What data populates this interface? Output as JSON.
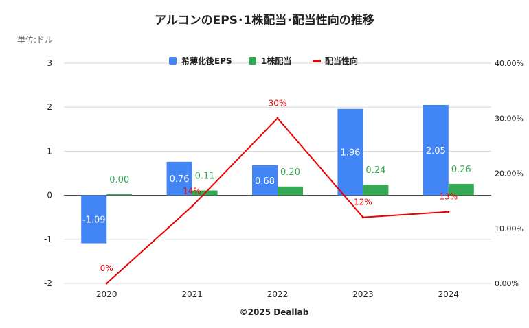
{
  "chart_data": {
    "type": "bar",
    "title": "アルコンのEPS･1株配当･配当性向の推移",
    "unit_label": "単位:ドル",
    "credit": "©2025 Deallab",
    "categories": [
      "2020",
      "2021",
      "2022",
      "2023",
      "2024"
    ],
    "ylim": [
      -2,
      3
    ],
    "y_ticks": [
      "-2",
      "-1",
      "0",
      "1",
      "2",
      "3"
    ],
    "y2lim": [
      0,
      40
    ],
    "y2_ticks": [
      "0.00%",
      "10.00%",
      "20.00%",
      "30.00%",
      "40.00%"
    ],
    "grid": true,
    "legend_position": "top",
    "series": [
      {
        "name": "希薄化後EPS",
        "kind": "bar",
        "color": "#4285f4",
        "values": [
          -1.09,
          0.76,
          0.68,
          1.96,
          2.05
        ],
        "labels": [
          "-1.09",
          "0.76",
          "0.68",
          "1.96",
          "2.05"
        ]
      },
      {
        "name": "1株配当",
        "kind": "bar",
        "color": "#34a853",
        "values": [
          0.0,
          0.11,
          0.2,
          0.24,
          0.26
        ],
        "labels": [
          "0.00",
          "0.11",
          "0.20",
          "0.24",
          "0.26"
        ]
      },
      {
        "name": "配当性向",
        "kind": "line",
        "axis": "right",
        "color": "#ea0000",
        "values": [
          0,
          14,
          30,
          12,
          13
        ],
        "labels": [
          "0%",
          "14%",
          "30%",
          "12%",
          "13%"
        ]
      }
    ]
  }
}
